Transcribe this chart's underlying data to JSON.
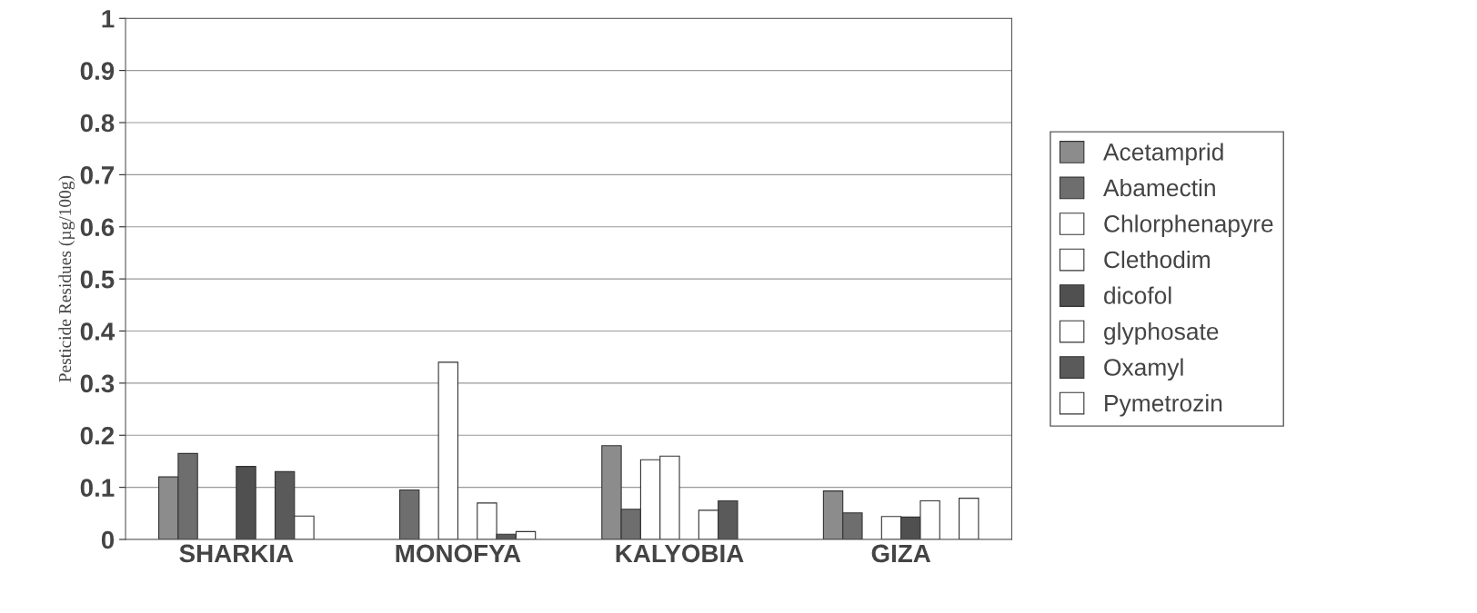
{
  "chart_data": {
    "type": "bar",
    "ylabel": "Pesticide Residues (µg/100g)",
    "categories": [
      "SHARKIA",
      "MONOFYA",
      "KALYOBIA",
      "GIZA"
    ],
    "series": [
      {
        "name": "Acetamprid",
        "color": "#8c8c8c",
        "values": [
          0.12,
          0,
          0.18,
          0.093
        ]
      },
      {
        "name": "Abamectin",
        "color": "#6e6e6e",
        "values": [
          0.165,
          0.095,
          0.058,
          0.051
        ]
      },
      {
        "name": "Chlorphenapyre",
        "color": "#ffffff",
        "values": [
          0,
          0,
          0.153,
          0
        ]
      },
      {
        "name": "Clethodim",
        "color": "#ffffff",
        "values": [
          0,
          0.34,
          0.16,
          0.044
        ]
      },
      {
        "name": "dicofol",
        "color": "#505050",
        "values": [
          0.14,
          0,
          0,
          0.043
        ]
      },
      {
        "name": "glyphosate",
        "color": "#ffffff",
        "values": [
          0,
          0.07,
          0.056,
          0.074
        ]
      },
      {
        "name": "Oxamyl",
        "color": "#5a5a5a",
        "values": [
          0.13,
          0.01,
          0.074,
          0
        ]
      },
      {
        "name": "Pymetrozin",
        "color": "#ffffff",
        "values": [
          0.045,
          0.015,
          0,
          0.079
        ]
      }
    ],
    "ylim": [
      0,
      1
    ],
    "yticks": [
      0,
      0.1,
      0.2,
      0.3,
      0.4,
      0.5,
      0.6,
      0.7,
      0.8,
      0.9,
      1
    ],
    "grid": "y",
    "legend": "right"
  }
}
